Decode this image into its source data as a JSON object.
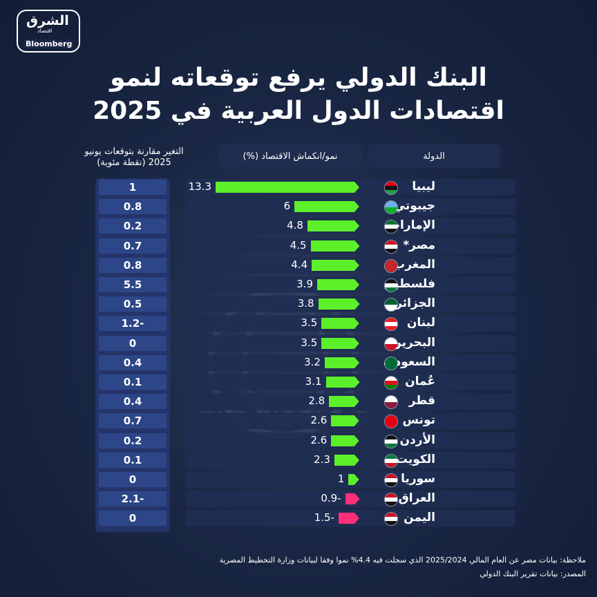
{
  "brand": {
    "name_ar": "الشرق",
    "sub_ar": "اقتصاد",
    "partner": "Bloomberg"
  },
  "title": {
    "line1": "البنك الدولي يرفع توقعاته لنمو",
    "line2": "اقتصادات الدول العربية في 2025"
  },
  "headers": {
    "country": "الدولة",
    "growth": "نمو/انكماش الاقتصاد (%)",
    "change_line1": "التغير مقارنة بتوقعات يونيو",
    "change_line2": "2025 (نقطة مئوية)"
  },
  "colors": {
    "positive_bar": "#5cf02a",
    "negative_bar": "#ff2f7a",
    "change_cell": "#2d4688"
  },
  "chart_data": {
    "type": "bar",
    "orientation": "horizontal",
    "categories": [
      "ليبيا",
      "جيبوتي",
      "الإمارات",
      "مصر*",
      "المغرب",
      "فلسطين",
      "الجزائر",
      "لبنان",
      "البحرين",
      "السعودية",
      "عُمان",
      "قطر",
      "تونس",
      "الأردن",
      "الكويت",
      "سوريا",
      "العراق",
      "اليمن"
    ],
    "values": [
      13.3,
      6,
      4.8,
      4.5,
      4.4,
      3.9,
      3.8,
      3.5,
      3.5,
      3.2,
      3.1,
      2.8,
      2.6,
      2.6,
      2.3,
      1,
      -0.9,
      -1.5
    ],
    "value_labels": [
      "13.3",
      "6",
      "4.8",
      "4.5",
      "4.4",
      "3.9",
      "3.8",
      "3.5",
      "3.5",
      "3.2",
      "3.1",
      "2.8",
      "2.6",
      "2.6",
      "2.3",
      "1",
      "0.9-",
      "1.5-"
    ],
    "change_labels": [
      "1",
      "0.8",
      "0.2",
      "0.7",
      "0.8",
      "5.5",
      "0.5",
      "1.2-",
      "0",
      "0.4",
      "0.1",
      "0.4",
      "0.7",
      "0.2",
      "0.1",
      "0",
      "2.1-",
      "0"
    ],
    "flags": [
      "libya",
      "djibouti",
      "uae",
      "egypt",
      "morocco",
      "palestine",
      "algeria",
      "lebanon",
      "bahrain",
      "saudi",
      "oman",
      "qatar",
      "tunisia",
      "jordan",
      "kuwait",
      "syria",
      "iraq",
      "yemen"
    ]
  },
  "notes": {
    "note": "ملاحظة: بيانات مصر عن العام المالي 2025/2024 الذي سجلت فيه 4.4% نموا وفقا لبيانات وزارة التخطيط المصرية",
    "source": "المصدر: بيانات تقرير البنك الدولي"
  }
}
